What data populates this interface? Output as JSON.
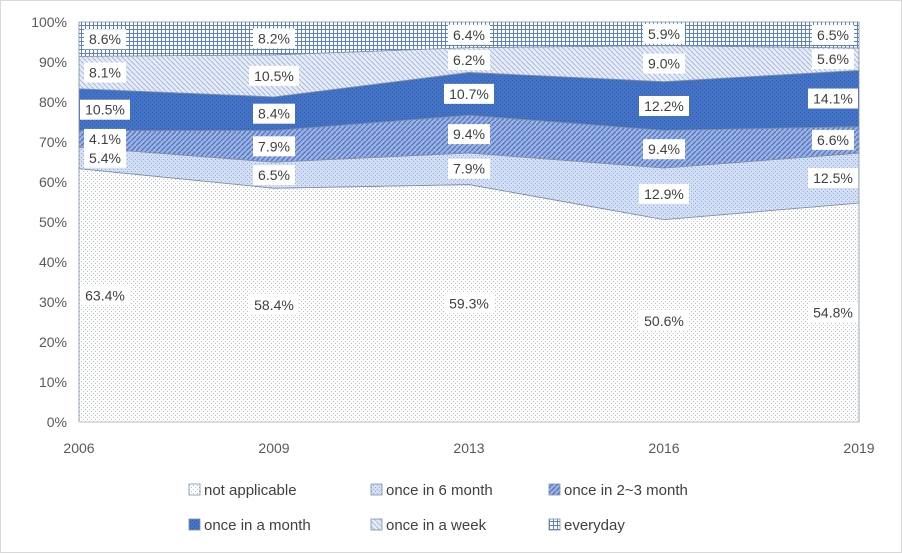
{
  "chart_data": {
    "type": "area",
    "stacked": true,
    "x": [
      "2006",
      "2009",
      "2013",
      "2016",
      "2019"
    ],
    "ylim": [
      0,
      100
    ],
    "yticks": [
      "0%",
      "10%",
      "20%",
      "30%",
      "40%",
      "50%",
      "60%",
      "70%",
      "80%",
      "90%",
      "100%"
    ],
    "series": [
      {
        "name": "not applicable",
        "values": [
          63.4,
          58.4,
          59.3,
          50.6,
          54.8
        ],
        "labels": [
          "63.4%",
          "58.4%",
          "59.3%",
          "50.6%",
          "54.8%"
        ]
      },
      {
        "name": "once in 6 month",
        "values": [
          5.4,
          6.5,
          7.9,
          12.9,
          12.5
        ],
        "labels": [
          "5.4%",
          "6.5%",
          "7.9%",
          "12.9%",
          "12.5%"
        ]
      },
      {
        "name": "once in 2~3 month",
        "values": [
          4.1,
          7.9,
          9.4,
          9.4,
          6.6
        ],
        "labels": [
          "4.1%",
          "7.9%",
          "9.4%",
          "9.4%",
          "6.6%"
        ]
      },
      {
        "name": "once in a month",
        "values": [
          10.5,
          8.4,
          10.7,
          12.2,
          14.1
        ],
        "labels": [
          "10.5%",
          "8.4%",
          "10.7%",
          "12.2%",
          "14.1%"
        ]
      },
      {
        "name": "once in a week",
        "values": [
          8.1,
          10.5,
          6.2,
          9.0,
          5.6
        ],
        "labels": [
          "8.1%",
          "10.5%",
          "6.2%",
          "9.0%",
          "5.6%"
        ]
      },
      {
        "name": "everyday",
        "values": [
          8.6,
          8.2,
          6.4,
          5.9,
          6.5
        ],
        "labels": [
          "8.6%",
          "8.2%",
          "6.4%",
          "5.9%",
          "6.5%"
        ]
      }
    ],
    "legend_position": "bottom",
    "grid": false
  }
}
